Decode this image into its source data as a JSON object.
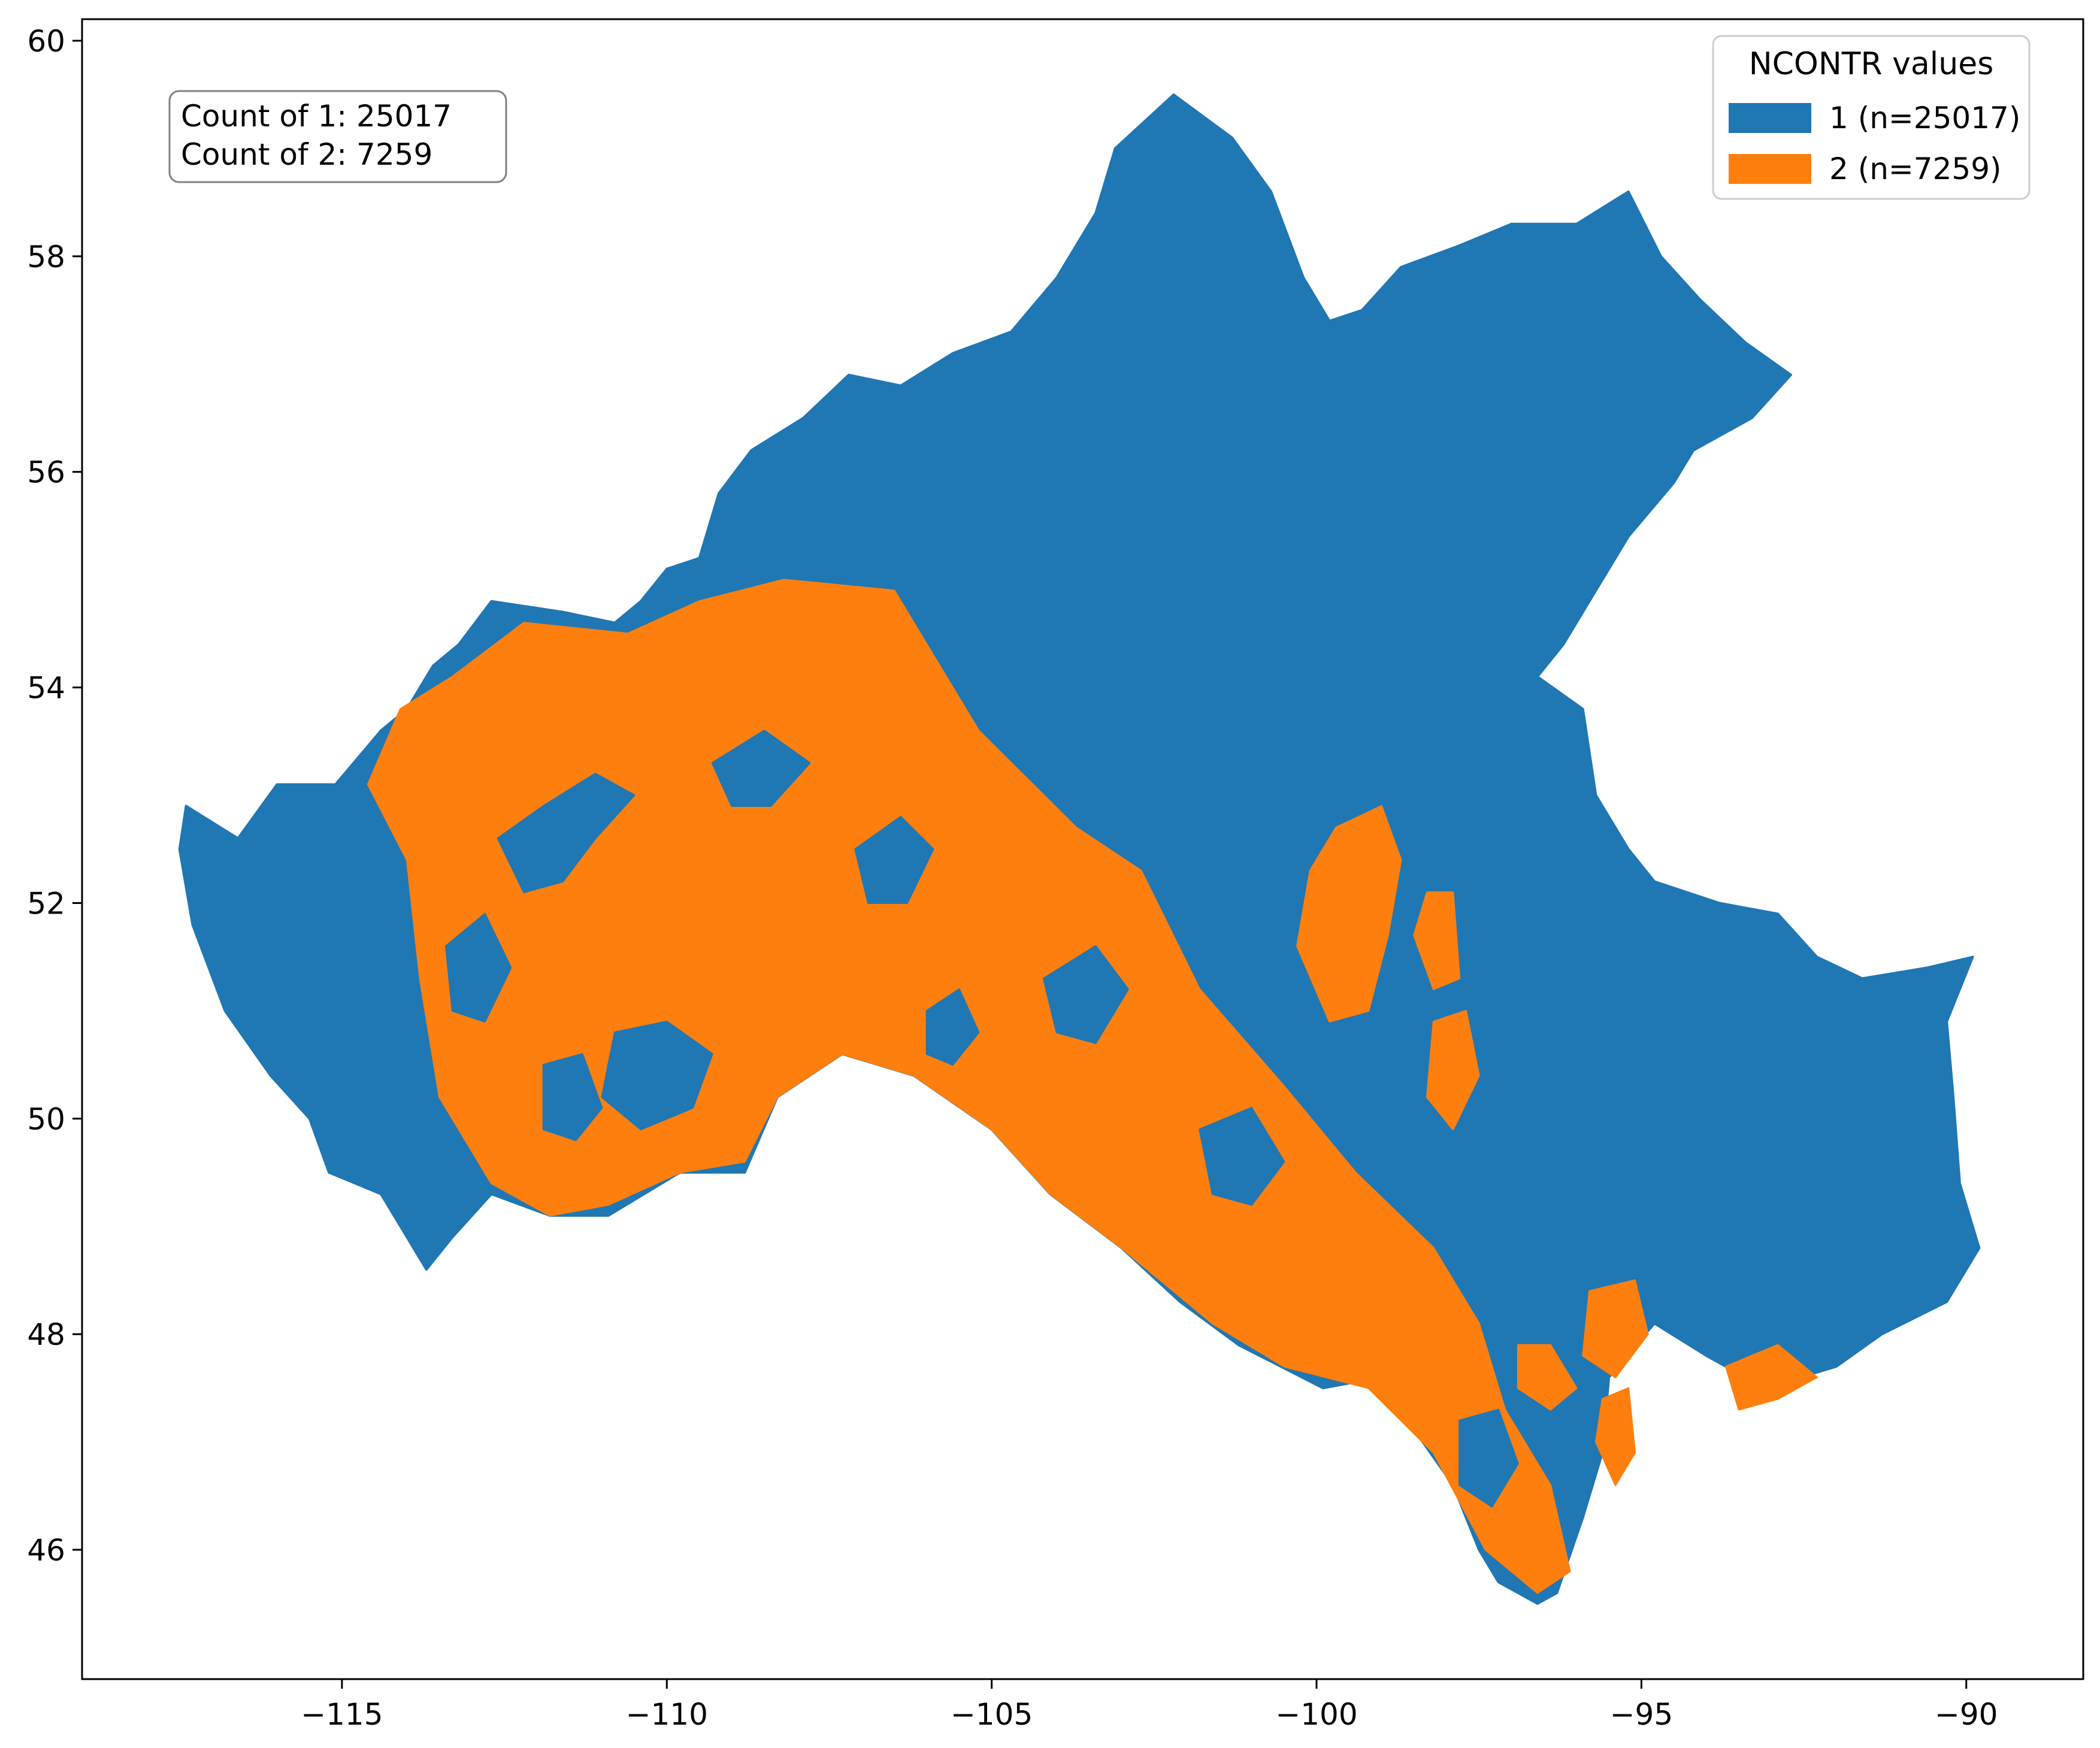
{
  "colors": {
    "class_1": "#1f77b4",
    "class_2": "#ff7f0e"
  },
  "count_box": {
    "line_1": "Count of 1: 25017",
    "line_2": "Count of 2: 7259"
  },
  "legend": {
    "title": "NCONTR values",
    "items": [
      {
        "label": "1 (n=25017)"
      },
      {
        "label": "2 (n=7259)"
      }
    ]
  },
  "chart_data": {
    "type": "choropleth",
    "title": "",
    "xlabel": "",
    "ylabel": "",
    "xlim": [
      -119,
      -88.2
    ],
    "ylim": [
      44.8,
      60.2
    ],
    "x_ticks": [
      -115,
      -110,
      -105,
      -100,
      -95,
      -90
    ],
    "y_ticks": [
      46,
      48,
      50,
      52,
      54,
      56,
      58,
      60
    ],
    "x_tick_labels": [
      "−115",
      "−110",
      "−105",
      "−100",
      "−95",
      "−90"
    ],
    "y_tick_labels": [
      "46",
      "48",
      "50",
      "52",
      "54",
      "56",
      "58",
      "60"
    ],
    "legend_position": "top-right",
    "grid": false,
    "categories": [
      {
        "value": 1,
        "count": 25017
      },
      {
        "value": 2,
        "count": 7259
      }
    ],
    "region_outline": [
      [
        -117.4,
        52.9
      ],
      [
        -116.6,
        52.6
      ],
      [
        -116.0,
        53.1
      ],
      [
        -115.1,
        53.1
      ],
      [
        -114.4,
        53.6
      ],
      [
        -114.0,
        53.8
      ],
      [
        -113.6,
        54.2
      ],
      [
        -113.2,
        54.4
      ],
      [
        -112.7,
        54.8
      ],
      [
        -111.6,
        54.7
      ],
      [
        -110.8,
        54.6
      ],
      [
        -110.4,
        54.8
      ],
      [
        -110.0,
        55.1
      ],
      [
        -109.5,
        55.2
      ],
      [
        -109.2,
        55.8
      ],
      [
        -108.7,
        56.2
      ],
      [
        -107.9,
        56.5
      ],
      [
        -107.2,
        56.9
      ],
      [
        -106.4,
        56.8
      ],
      [
        -105.6,
        57.1
      ],
      [
        -104.7,
        57.3
      ],
      [
        -104.0,
        57.8
      ],
      [
        -103.4,
        58.4
      ],
      [
        -103.1,
        59.0
      ],
      [
        -102.2,
        59.5
      ],
      [
        -101.3,
        59.1
      ],
      [
        -100.7,
        58.6
      ],
      [
        -100.2,
        57.8
      ],
      [
        -99.8,
        57.4
      ],
      [
        -99.3,
        57.5
      ],
      [
        -98.7,
        57.9
      ],
      [
        -97.8,
        58.1
      ],
      [
        -97.0,
        58.3
      ],
      [
        -96.0,
        58.3
      ],
      [
        -95.2,
        58.6
      ],
      [
        -94.7,
        58.0
      ],
      [
        -94.1,
        57.6
      ],
      [
        -93.4,
        57.2
      ],
      [
        -92.7,
        56.9
      ],
      [
        -93.3,
        56.5
      ],
      [
        -94.2,
        56.2
      ],
      [
        -94.5,
        55.9
      ],
      [
        -95.2,
        55.4
      ],
      [
        -95.7,
        54.9
      ],
      [
        -96.2,
        54.4
      ],
      [
        -96.6,
        54.1
      ],
      [
        -95.9,
        53.8
      ],
      [
        -95.7,
        53.0
      ],
      [
        -95.2,
        52.5
      ],
      [
        -94.8,
        52.2
      ],
      [
        -93.8,
        52.0
      ],
      [
        -92.9,
        51.9
      ],
      [
        -92.3,
        51.5
      ],
      [
        -91.6,
        51.3
      ],
      [
        -90.6,
        51.4
      ],
      [
        -89.9,
        51.5
      ],
      [
        -90.3,
        50.9
      ],
      [
        -90.2,
        50.2
      ],
      [
        -90.1,
        49.4
      ],
      [
        -89.8,
        48.8
      ],
      [
        -90.3,
        48.3
      ],
      [
        -91.3,
        48.0
      ],
      [
        -92.0,
        47.7
      ],
      [
        -93.1,
        47.5
      ],
      [
        -94.0,
        47.8
      ],
      [
        -94.8,
        48.1
      ],
      [
        -95.5,
        47.6
      ],
      [
        -95.6,
        46.9
      ],
      [
        -95.9,
        46.3
      ],
      [
        -96.3,
        45.6
      ],
      [
        -96.6,
        45.5
      ],
      [
        -97.2,
        45.7
      ],
      [
        -97.5,
        46.0
      ],
      [
        -97.9,
        46.6
      ],
      [
        -98.6,
        47.2
      ],
      [
        -99.0,
        47.6
      ],
      [
        -99.9,
        47.5
      ],
      [
        -101.2,
        47.9
      ],
      [
        -102.1,
        48.3
      ],
      [
        -103.0,
        48.8
      ],
      [
        -104.1,
        49.3
      ],
      [
        -105.0,
        49.9
      ],
      [
        -106.2,
        50.4
      ],
      [
        -107.3,
        50.6
      ],
      [
        -108.3,
        50.2
      ],
      [
        -108.8,
        49.5
      ],
      [
        -109.8,
        49.5
      ],
      [
        -110.9,
        49.1
      ],
      [
        -111.8,
        49.1
      ],
      [
        -112.7,
        49.3
      ],
      [
        -113.3,
        48.9
      ],
      [
        -113.7,
        48.6
      ],
      [
        -114.4,
        49.3
      ],
      [
        -115.2,
        49.5
      ],
      [
        -115.5,
        50.0
      ],
      [
        -116.1,
        50.4
      ],
      [
        -116.8,
        51.0
      ],
      [
        -117.3,
        51.8
      ],
      [
        -117.5,
        52.5
      ]
    ],
    "class_2_areas": [
      [
        [
          -114.1,
          53.8
        ],
        [
          -113.3,
          54.1
        ],
        [
          -112.2,
          54.6
        ],
        [
          -110.6,
          54.5
        ],
        [
          -109.5,
          54.8
        ],
        [
          -108.2,
          55.0
        ],
        [
          -106.5,
          54.9
        ],
        [
          -105.2,
          53.6
        ],
        [
          -103.7,
          52.7
        ],
        [
          -102.7,
          52.3
        ],
        [
          -101.8,
          51.2
        ],
        [
          -100.5,
          50.3
        ],
        [
          -99.4,
          49.5
        ],
        [
          -98.2,
          48.8
        ],
        [
          -97.5,
          48.1
        ],
        [
          -97.1,
          47.3
        ],
        [
          -96.4,
          46.6
        ],
        [
          -96.1,
          45.8
        ],
        [
          -96.6,
          45.6
        ],
        [
          -97.4,
          46.0
        ],
        [
          -98.2,
          46.9
        ],
        [
          -99.2,
          47.5
        ],
        [
          -100.5,
          47.7
        ],
        [
          -101.6,
          48.1
        ],
        [
          -103.0,
          48.8
        ],
        [
          -104.1,
          49.3
        ],
        [
          -105.0,
          49.9
        ],
        [
          -106.2,
          50.4
        ],
        [
          -107.3,
          50.6
        ],
        [
          -108.3,
          50.2
        ],
        [
          -108.8,
          49.6
        ],
        [
          -109.8,
          49.5
        ],
        [
          -110.9,
          49.2
        ],
        [
          -111.8,
          49.1
        ],
        [
          -112.7,
          49.4
        ],
        [
          -113.5,
          50.2
        ],
        [
          -113.8,
          51.3
        ],
        [
          -114.0,
          52.4
        ],
        [
          -114.6,
          53.1
        ]
      ],
      [
        [
          -99.7,
          52.7
        ],
        [
          -99.0,
          52.9
        ],
        [
          -98.7,
          52.4
        ],
        [
          -98.9,
          51.7
        ],
        [
          -99.2,
          51.0
        ],
        [
          -99.8,
          50.9
        ],
        [
          -100.3,
          51.6
        ],
        [
          -100.1,
          52.3
        ]
      ],
      [
        [
          -98.2,
          50.9
        ],
        [
          -97.7,
          51.0
        ],
        [
          -97.5,
          50.4
        ],
        [
          -97.9,
          49.9
        ],
        [
          -98.3,
          50.2
        ]
      ],
      [
        [
          -98.3,
          52.1
        ],
        [
          -97.9,
          52.1
        ],
        [
          -97.8,
          51.3
        ],
        [
          -98.2,
          51.2
        ],
        [
          -98.5,
          51.7
        ]
      ],
      [
        [
          -95.8,
          48.4
        ],
        [
          -95.1,
          48.5
        ],
        [
          -94.9,
          48.0
        ],
        [
          -95.4,
          47.6
        ],
        [
          -95.9,
          47.8
        ]
      ],
      [
        [
          -93.7,
          47.7
        ],
        [
          -92.9,
          47.9
        ],
        [
          -92.3,
          47.6
        ],
        [
          -92.9,
          47.4
        ],
        [
          -93.5,
          47.3
        ]
      ],
      [
        [
          -96.9,
          47.9
        ],
        [
          -96.4,
          47.9
        ],
        [
          -96.0,
          47.5
        ],
        [
          -96.4,
          47.3
        ],
        [
          -96.9,
          47.5
        ]
      ],
      [
        [
          -95.6,
          47.4
        ],
        [
          -95.2,
          47.5
        ],
        [
          -95.1,
          46.9
        ],
        [
          -95.4,
          46.6
        ],
        [
          -95.7,
          47.0
        ]
      ]
    ],
    "class_1_areas": [
      [
        [
          -112.6,
          52.6
        ],
        [
          -111.9,
          52.9
        ],
        [
          -111.1,
          53.2
        ],
        [
          -110.5,
          53.0
        ],
        [
          -111.1,
          52.6
        ],
        [
          -111.6,
          52.2
        ],
        [
          -112.2,
          52.1
        ]
      ],
      [
        [
          -110.8,
          50.8
        ],
        [
          -110.0,
          50.9
        ],
        [
          -109.3,
          50.6
        ],
        [
          -109.6,
          50.1
        ],
        [
          -110.4,
          49.9
        ],
        [
          -111.0,
          50.2
        ]
      ],
      [
        [
          -107.1,
          52.5
        ],
        [
          -106.4,
          52.8
        ],
        [
          -105.9,
          52.5
        ],
        [
          -106.3,
          52.0
        ],
        [
          -106.9,
          52.0
        ]
      ],
      [
        [
          -113.4,
          51.6
        ],
        [
          -112.8,
          51.9
        ],
        [
          -112.4,
          51.4
        ],
        [
          -112.8,
          50.9
        ],
        [
          -113.3,
          51.0
        ]
      ],
      [
        [
          -104.2,
          51.3
        ],
        [
          -103.4,
          51.6
        ],
        [
          -102.9,
          51.2
        ],
        [
          -103.4,
          50.7
        ],
        [
          -104.0,
          50.8
        ]
      ],
      [
        [
          -109.3,
          53.3
        ],
        [
          -108.5,
          53.6
        ],
        [
          -107.8,
          53.3
        ],
        [
          -108.4,
          52.9
        ],
        [
          -109.0,
          52.9
        ]
      ],
      [
        [
          -101.8,
          49.9
        ],
        [
          -101.0,
          50.1
        ],
        [
          -100.5,
          49.6
        ],
        [
          -101.0,
          49.2
        ],
        [
          -101.6,
          49.3
        ]
      ],
      [
        [
          -111.9,
          50.5
        ],
        [
          -111.3,
          50.6
        ],
        [
          -111.0,
          50.1
        ],
        [
          -111.4,
          49.8
        ],
        [
          -111.9,
          49.9
        ]
      ],
      [
        [
          -106.0,
          51.0
        ],
        [
          -105.5,
          51.2
        ],
        [
          -105.2,
          50.8
        ],
        [
          -105.6,
          50.5
        ],
        [
          -106.0,
          50.6
        ]
      ],
      [
        [
          -97.8,
          47.2
        ],
        [
          -97.2,
          47.3
        ],
        [
          -96.9,
          46.8
        ],
        [
          -97.3,
          46.4
        ],
        [
          -97.8,
          46.6
        ]
      ]
    ]
  }
}
